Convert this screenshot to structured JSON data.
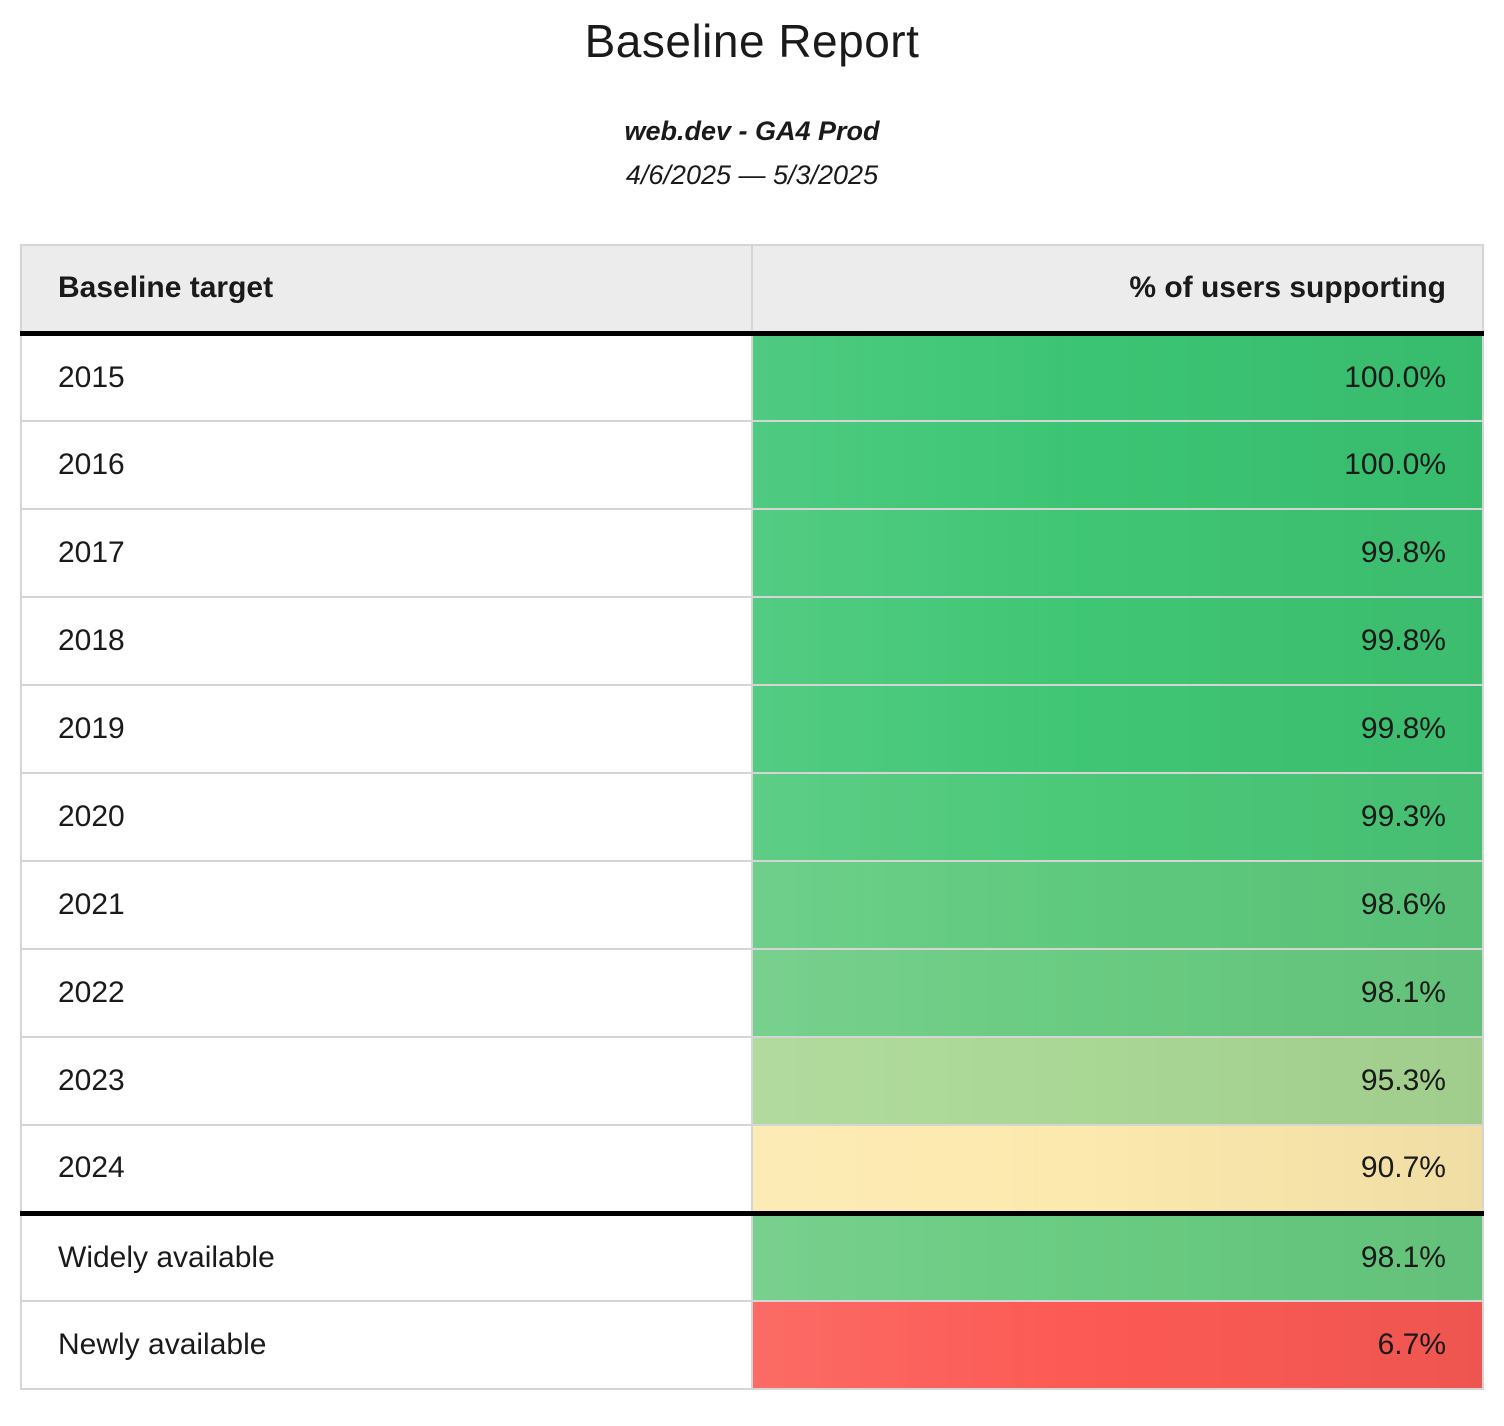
{
  "header": {
    "title": "Baseline Report",
    "property": "web.dev - GA4 Prod",
    "date_range": "4/6/2025 — 5/3/2025"
  },
  "table": {
    "columns": [
      "Baseline target",
      "% of users supporting"
    ],
    "rows": [
      {
        "label": "2015",
        "value": "100.0%",
        "color": "#3bc573"
      },
      {
        "label": "2016",
        "value": "100.0%",
        "color": "#3bc573"
      },
      {
        "label": "2017",
        "value": "99.8%",
        "color": "#3fc674"
      },
      {
        "label": "2018",
        "value": "99.8%",
        "color": "#3fc674"
      },
      {
        "label": "2019",
        "value": "99.8%",
        "color": "#3fc674"
      },
      {
        "label": "2020",
        "value": "99.3%",
        "color": "#4bc878"
      },
      {
        "label": "2021",
        "value": "98.6%",
        "color": "#5eca7d"
      },
      {
        "label": "2022",
        "value": "98.1%",
        "color": "#69cb81"
      },
      {
        "label": "2023",
        "value": "95.3%",
        "color": "#a9d794"
      },
      {
        "label": "2024",
        "value": "90.7%",
        "color": "#fce9ad"
      },
      {
        "label": "Widely available",
        "value": "98.1%",
        "color": "#69cb81",
        "section_start": true
      },
      {
        "label": "Newly available",
        "value": "6.7%",
        "color": "#fc5a54"
      }
    ]
  },
  "chart_data": {
    "type": "table",
    "title": "Baseline Report",
    "subtitle": "web.dev - GA4 Prod",
    "date_range": "4/6/2025 — 5/3/2025",
    "columns": [
      "Baseline target",
      "% of users supporting"
    ],
    "categories": [
      "2015",
      "2016",
      "2017",
      "2018",
      "2019",
      "2020",
      "2021",
      "2022",
      "2023",
      "2024",
      "Widely available",
      "Newly available"
    ],
    "values": [
      100.0,
      100.0,
      99.8,
      99.8,
      99.8,
      99.3,
      98.6,
      98.1,
      95.3,
      90.7,
      98.1,
      6.7
    ],
    "value_unit": "percent",
    "color_scale": "heatmap red-yellow-green by value",
    "layout": "two equal columns; thick black rules below header and above 'Widely available' section"
  },
  "colors": {
    "header_bg": "#ececec",
    "cell_border": "#d5d5d5",
    "thick_rule": "#000000",
    "text": "#1a1a1a",
    "green_full": "#3bc573",
    "green_light": "#a9d794",
    "yellow": "#fce9ad",
    "red": "#fc5a54"
  }
}
